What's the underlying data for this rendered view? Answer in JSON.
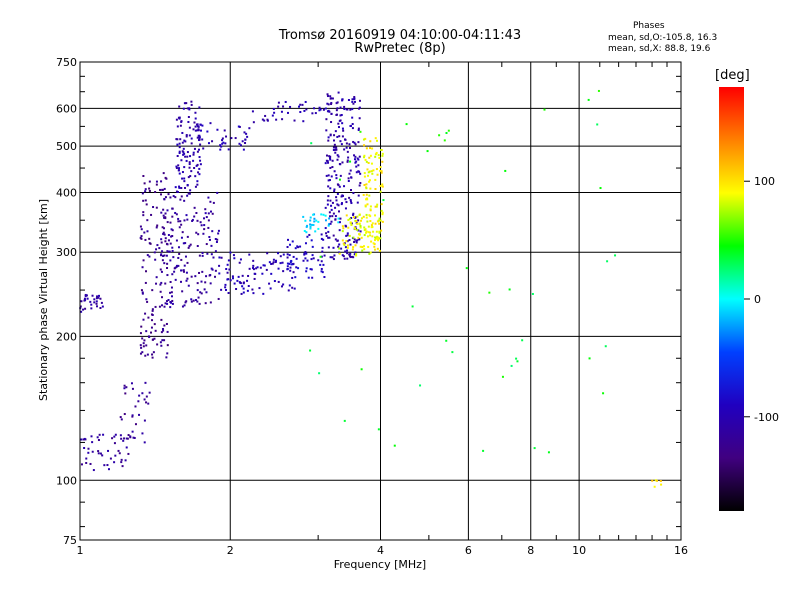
{
  "header": {
    "title_line1": "Tromsø 20160919 04:10:00-04:11:43",
    "title_line2": "RwPretec (8p)"
  },
  "phases_box": {
    "title": "Phases",
    "o_line": "mean, sd,O:-105.8, 16.3",
    "x_line": "mean, sd,X:  88.8, 19.6"
  },
  "colorbar": {
    "unit": "[deg]",
    "ticks": [
      "100",
      "0",
      "-100"
    ],
    "tick_values": [
      100,
      0,
      -100
    ],
    "range": [
      -180,
      180
    ],
    "colors": [
      "#ff0000",
      "#ff8000",
      "#ffff00",
      "#00ff00",
      "#00ffff",
      "#0040ff",
      "#2000c0",
      "#400080",
      "#000000"
    ]
  },
  "chart_data": {
    "type": "scatter",
    "title": "Tromsø 20160919 04:10:00-04:11:43",
    "subtitle": "RwPretec (8p)",
    "xlabel": "Frequency [MHz]",
    "ylabel": "Stationary phase Virtual Height [km]",
    "xscale": "log",
    "yscale": "log",
    "xlim": [
      1,
      16
    ],
    "ylim": [
      75,
      750
    ],
    "xticks": [
      1,
      2,
      4,
      6,
      8,
      10,
      16
    ],
    "yticks": [
      75,
      100,
      200,
      300,
      400,
      500,
      600,
      750
    ],
    "grid": true,
    "colorbar_label": "[deg]",
    "clusters": [
      {
        "region": "low-frequency O trace",
        "x": [
          1.0,
          1.12
        ],
        "y": [
          225,
          245
        ],
        "phase": -110,
        "n": 30
      },
      {
        "region": "low-frequency O trace",
        "x": [
          1.0,
          1.26
        ],
        "y": [
          105,
          125
        ],
        "phase": -115,
        "n": 45
      },
      {
        "region": "low-frequency O trace",
        "x": [
          1.2,
          1.38
        ],
        "y": [
          115,
          160
        ],
        "phase": -120,
        "n": 35
      },
      {
        "region": "F-layer O trace",
        "x": [
          1.32,
          1.5
        ],
        "y": [
          180,
          440
        ],
        "phase": -125,
        "n": 140
      },
      {
        "region": "F-layer O trace",
        "x": [
          1.45,
          1.9
        ],
        "y": [
          230,
          400
        ],
        "phase": -115,
        "n": 180
      },
      {
        "region": "F-layer O trace",
        "x": [
          1.55,
          1.75
        ],
        "y": [
          400,
          620
        ],
        "phase": -105,
        "n": 110
      },
      {
        "region": "F-layer O trace",
        "x": [
          1.7,
          2.2
        ],
        "y": [
          490,
          560
        ],
        "phase": -100,
        "n": 45
      },
      {
        "region": "F-layer O trace",
        "x": [
          1.9,
          2.7
        ],
        "y": [
          245,
          300
        ],
        "phase": -100,
        "n": 100
      },
      {
        "region": "F-layer O trace",
        "x": [
          2.6,
          3.1
        ],
        "y": [
          265,
          330
        ],
        "phase": -90,
        "n": 55
      },
      {
        "region": "F-layer O trace",
        "x": [
          2.8,
          3.3
        ],
        "y": [
          330,
          360
        ],
        "phase": -10,
        "n": 30
      },
      {
        "region": "F-layer O trace",
        "x": [
          2.2,
          3.2
        ],
        "y": [
          560,
          640
        ],
        "phase": -100,
        "n": 40
      },
      {
        "region": "F-layer O trace",
        "x": [
          3.1,
          3.65
        ],
        "y": [
          290,
          650
        ],
        "phase": -105,
        "n": 260
      },
      {
        "region": "X trace",
        "x": [
          3.3,
          4.0
        ],
        "y": [
          295,
          360
        ],
        "phase": 88,
        "n": 90
      },
      {
        "region": "X trace",
        "x": [
          3.7,
          4.05
        ],
        "y": [
          330,
          520
        ],
        "phase": 92,
        "n": 90
      },
      {
        "region": "scattered echoes",
        "x": [
          2.8,
          12.5
        ],
        "y": [
          110,
          660
        ],
        "phase": 40,
        "n": 45
      },
      {
        "region": "scattered echoes",
        "x": [
          14.0,
          14.6
        ],
        "y": [
          96,
          100
        ],
        "phase": 100,
        "n": 6
      }
    ]
  }
}
